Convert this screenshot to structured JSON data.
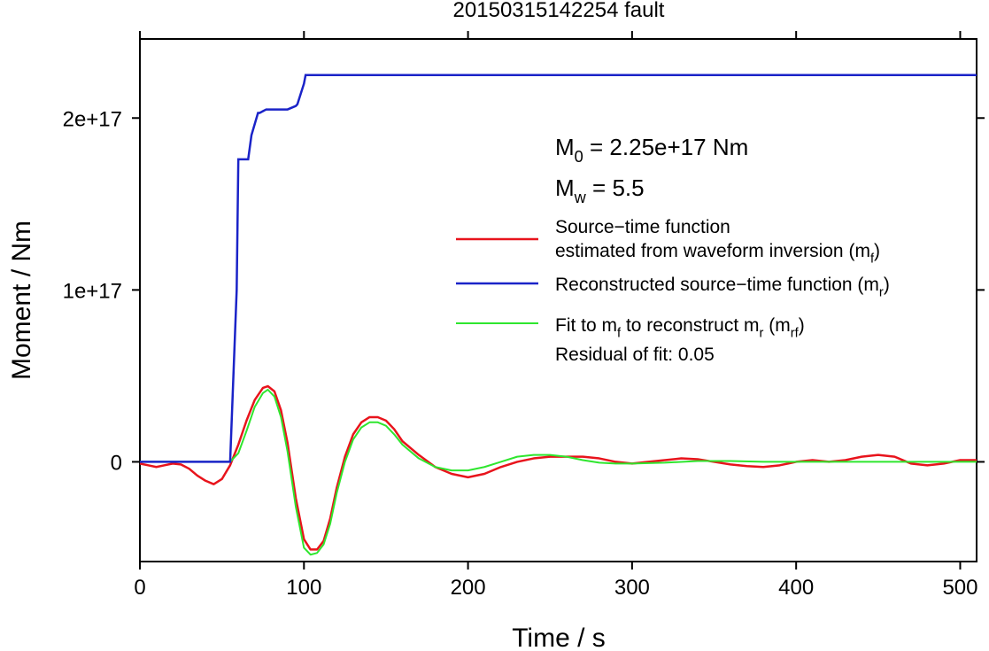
{
  "chart_data": {
    "type": "line",
    "title": "20150315142254 fault",
    "xlabel": "Time / s",
    "ylabel": "Moment / Nm",
    "xlim": [
      0,
      510
    ],
    "ylim": [
      -5.8e+16,
      2.46e+17
    ],
    "x_ticks": [
      {
        "value": 0,
        "label": "0"
      },
      {
        "value": 100,
        "label": "100"
      },
      {
        "value": 200,
        "label": "200"
      },
      {
        "value": 300,
        "label": "300"
      },
      {
        "value": 400,
        "label": "400"
      },
      {
        "value": 500,
        "label": "500"
      }
    ],
    "y_ticks": [
      {
        "value": 0,
        "label": "0"
      },
      {
        "value": 1e+17,
        "label": "1e+17"
      },
      {
        "value": 2e+17,
        "label": "2e+17"
      }
    ],
    "grid": false,
    "legend_position": "right",
    "annotations": {
      "m0": {
        "sym": "M",
        "sub": "0",
        "rest": " = 2.25e+17 Nm"
      },
      "mw": {
        "sym": "M",
        "sub": "w",
        "rest": " = 5.5"
      },
      "residual": "Residual of fit: 0.05"
    },
    "legend": [
      {
        "key": "mf",
        "color": "#e8141c",
        "lines": [
          [
            {
              "t": "Source−time function"
            }
          ],
          [
            {
              "t": "estimated from waveform inversion (m"
            },
            {
              "t": "f",
              "sub": true
            },
            {
              "t": ")"
            }
          ]
        ]
      },
      {
        "key": "mr",
        "color": "#1a23c8",
        "lines": [
          [
            {
              "t": "Reconstructed source−time function (m"
            },
            {
              "t": "r",
              "sub": true
            },
            {
              "t": ")"
            }
          ]
        ]
      },
      {
        "key": "mrf",
        "color": "#2ee62e",
        "lines": [
          [
            {
              "t": "Fit to m"
            },
            {
              "t": "f",
              "sub": true
            },
            {
              "t": " to reconstruct m"
            },
            {
              "t": "r",
              "sub": true
            },
            {
              "t": " (m"
            },
            {
              "t": "rf",
              "sub": true
            },
            {
              "t": ")"
            }
          ]
        ]
      }
    ],
    "series": [
      {
        "key": "mf",
        "color": "#e8141c",
        "x": [
          0,
          5,
          10,
          15,
          20,
          25,
          30,
          35,
          40,
          45,
          50,
          55,
          60,
          65,
          70,
          75,
          78,
          82,
          86,
          90,
          95,
          100,
          104,
          108,
          112,
          116,
          120,
          125,
          130,
          135,
          140,
          145,
          150,
          155,
          160,
          170,
          180,
          190,
          200,
          210,
          220,
          230,
          240,
          250,
          260,
          270,
          280,
          290,
          300,
          310,
          320,
          330,
          340,
          350,
          360,
          370,
          380,
          390,
          400,
          410,
          420,
          430,
          440,
          450,
          460,
          470,
          480,
          490,
          500,
          510
        ],
        "y": [
          -1000000000000000.0,
          -2000000000000000.0,
          -3000000000000000.0,
          -2000000000000000.0,
          -1000000000000000.0,
          -1500000000000000.0,
          -4000000000000000.0,
          -8000000000000000.0,
          -1.1e+16,
          -1.3e+16,
          -1e+16,
          -2000000000000000.0,
          1e+16,
          2.4e+16,
          3.6e+16,
          4.3e+16,
          4.4e+16,
          4.1e+16,
          3e+16,
          1.1e+16,
          -2.1e+16,
          -4.5e+16,
          -5.1e+16,
          -5.1e+16,
          -4.6e+16,
          -3.3e+16,
          -1.5e+16,
          3000000000000000.0,
          1.6e+16,
          2.3e+16,
          2.6e+16,
          2.6e+16,
          2.4e+16,
          1.9e+16,
          1.2e+16,
          4000000000000000.0,
          -3000000000000000.0,
          -7000000000000000.0,
          -9000000000000000.0,
          -7000000000000000.0,
          -3000000000000000.0,
          0.0,
          2000000000000000.0,
          3000000000000000.0,
          3000000000000000.0,
          3000000000000000.0,
          2000000000000000.0,
          0.0,
          -1000000000000000.0,
          0.0,
          1000000000000000.0,
          2000000000000000.0,
          1500000000000000.0,
          0.0,
          -1500000000000000.0,
          -2500000000000000.0,
          -3000000000000000.0,
          -2000000000000000.0,
          0.0,
          1000000000000000.0,
          0.0,
          1000000000000000.0,
          3000000000000000.0,
          4000000000000000.0,
          3000000000000000.0,
          -1000000000000000.0,
          -2000000000000000.0,
          -1000000000000000.0,
          1000000000000000.0,
          1000000000000000.0
        ]
      },
      {
        "key": "mrf",
        "color": "#2ee62e",
        "x": [
          0,
          40,
          50,
          55,
          60,
          65,
          70,
          75,
          78,
          82,
          86,
          90,
          95,
          100,
          104,
          108,
          112,
          116,
          120,
          125,
          130,
          135,
          140,
          145,
          150,
          155,
          160,
          170,
          180,
          190,
          200,
          210,
          220,
          230,
          240,
          250,
          260,
          270,
          280,
          290,
          300,
          320,
          340,
          360,
          380,
          400,
          420,
          440,
          460,
          480,
          500,
          510
        ],
        "y": [
          0,
          0,
          0,
          0,
          5000000000000000.0,
          1.8e+16,
          3.2e+16,
          4e+16,
          4.2e+16,
          3.8e+16,
          2.6e+16,
          6000000000000000.0,
          -2.6e+16,
          -5e+16,
          -5.4e+16,
          -5.3e+16,
          -4.8e+16,
          -3.6e+16,
          -1.8e+16,
          0.0,
          1.3e+16,
          2e+16,
          2.3e+16,
          2.3e+16,
          2.1e+16,
          1.6e+16,
          1e+16,
          2000000000000000.0,
          -3000000000000000.0,
          -5000000000000000.0,
          -5000000000000000.0,
          -3000000000000000.0,
          0.0,
          3000000000000000.0,
          4000000000000000.0,
          4000000000000000.0,
          3000000000000000.0,
          1000000000000000.0,
          -500000000000000.0,
          -1000000000000000.0,
          -1000000000000000.0,
          -500000000000000.0,
          500000000000000.0,
          500000000000000.0,
          0.0,
          0.0,
          0.0,
          0.0,
          0.0,
          0.0,
          0.0,
          0.0
        ]
      },
      {
        "key": "mr",
        "color": "#1a23c8",
        "step": true,
        "x": [
          0,
          55,
          59,
          60,
          61,
          65,
          66,
          68,
          72,
          73,
          75,
          77,
          80,
          85,
          90,
          95,
          96,
          100,
          101,
          510
        ],
        "y": [
          0,
          0,
          1e+17,
          1.76e+17,
          1.76e+17,
          1.76e+17,
          1.76e+17,
          1.9e+17,
          2.03e+17,
          2.03e+17,
          2.04e+17,
          2.05e+17,
          2.05e+17,
          2.05e+17,
          2.05e+17,
          2.07e+17,
          2.08e+17,
          2.2e+17,
          2.25e+17,
          2.25e+17
        ]
      }
    ]
  }
}
